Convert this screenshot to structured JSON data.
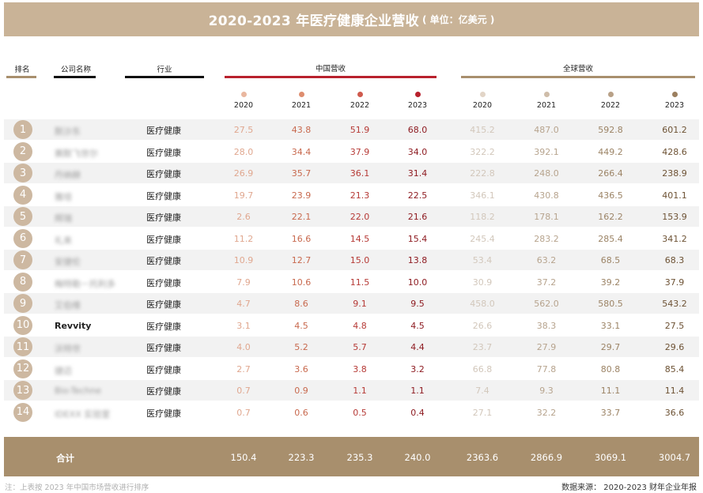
{
  "title": {
    "main": "2020-2023 年医疗健康企业营收",
    "unit": "( 单位：亿美元 )"
  },
  "headers": {
    "rank": "排名",
    "company": "公司名称",
    "industry": "行业",
    "china_revenue": "中国营收",
    "global_revenue": "全球营收"
  },
  "years": [
    "2020",
    "2021",
    "2022",
    "2023"
  ],
  "colors": {
    "title_bg": "#c9b397",
    "total_bg": "#a88f6d",
    "china_line": "#b8212d",
    "global_line": "#a88f6d",
    "china_dots": [
      "#e9b79f",
      "#de8d6f",
      "#cf5a4d",
      "#b8212d"
    ],
    "global_dots": [
      "#e2d5c7",
      "#cfbda9",
      "#b8a187",
      "#9b7f5f"
    ],
    "china_text": [
      "#e0a78f",
      "#c8694e",
      "#b63a36",
      "#8e1c22"
    ],
    "global_text": [
      "#d2c7bb",
      "#b7a48e",
      "#9c8466",
      "#6d5234"
    ]
  },
  "rows": [
    {
      "rank": "1",
      "company": "默沙东",
      "industry": "医疗健康",
      "china": [
        "27.5",
        "43.8",
        "51.9",
        "68.0"
      ],
      "global": [
        "415.2",
        "487.0",
        "592.8",
        "601.2"
      ]
    },
    {
      "rank": "2",
      "company": "赛默飞世尔",
      "industry": "医疗健康",
      "china": [
        "28.0",
        "34.4",
        "37.9",
        "34.0"
      ],
      "global": [
        "322.2",
        "392.1",
        "449.2",
        "428.6"
      ]
    },
    {
      "rank": "3",
      "company": "丹纳赫",
      "industry": "医疗健康",
      "china": [
        "26.9",
        "35.7",
        "36.1",
        "31.4"
      ],
      "global": [
        "222.8",
        "248.0",
        "266.4",
        "238.9"
      ]
    },
    {
      "rank": "4",
      "company": "雅培",
      "industry": "医疗健康",
      "china": [
        "19.7",
        "23.9",
        "21.3",
        "22.5"
      ],
      "global": [
        "346.1",
        "430.8",
        "436.5",
        "401.1"
      ]
    },
    {
      "rank": "5",
      "company": "辉瑞",
      "industry": "医疗健康",
      "china": [
        "2.6",
        "22.1",
        "22.0",
        "21.6"
      ],
      "global": [
        "118.2",
        "178.1",
        "162.2",
        "153.9"
      ]
    },
    {
      "rank": "6",
      "company": "礼来",
      "industry": "医疗健康",
      "china": [
        "11.2",
        "16.6",
        "14.5",
        "15.4"
      ],
      "global": [
        "245.4",
        "283.2",
        "285.4",
        "341.2"
      ]
    },
    {
      "rank": "7",
      "company": "安捷伦",
      "industry": "医疗健康",
      "china": [
        "10.9",
        "12.7",
        "15.0",
        "13.8"
      ],
      "global": [
        "53.4",
        "63.2",
        "68.5",
        "68.3"
      ]
    },
    {
      "rank": "8",
      "company": "梅特勒－托利多",
      "industry": "医疗健康",
      "china": [
        "7.9",
        "10.6",
        "11.5",
        "10.0"
      ],
      "global": [
        "30.9",
        "37.2",
        "39.2",
        "37.9"
      ]
    },
    {
      "rank": "9",
      "company": "艾伯维",
      "industry": "医疗健康",
      "china": [
        "4.7",
        "8.6",
        "9.1",
        "9.5"
      ],
      "global": [
        "458.0",
        "562.0",
        "580.5",
        "543.2"
      ]
    },
    {
      "rank": "10",
      "company": "Revvity",
      "industry": "医疗健康",
      "china": [
        "3.1",
        "4.5",
        "4.8",
        "4.5"
      ],
      "global": [
        "26.6",
        "38.3",
        "33.1",
        "27.5"
      ]
    },
    {
      "rank": "11",
      "company": "沃特世",
      "industry": "医疗健康",
      "china": [
        "4.0",
        "5.2",
        "5.7",
        "4.4"
      ],
      "global": [
        "23.7",
        "27.9",
        "29.7",
        "29.6"
      ]
    },
    {
      "rank": "12",
      "company": "捷迈",
      "industry": "医疗健康",
      "china": [
        "2.7",
        "3.6",
        "3.8",
        "3.2"
      ],
      "global": [
        "66.8",
        "77.8",
        "80.8",
        "85.4"
      ]
    },
    {
      "rank": "13",
      "company": "Bio-Techne",
      "industry": "医疗健康",
      "china": [
        "0.7",
        "0.9",
        "1.1",
        "1.1"
      ],
      "global": [
        "7.4",
        "9.3",
        "11.1",
        "11.4"
      ]
    },
    {
      "rank": "14",
      "company": "IDEXX 实验室",
      "industry": "医疗健康",
      "china": [
        "0.7",
        "0.6",
        "0.5",
        "0.4"
      ],
      "global": [
        "27.1",
        "32.2",
        "33.7",
        "36.6"
      ]
    }
  ],
  "total": {
    "label": "合计",
    "china": [
      "150.4",
      "223.3",
      "235.3",
      "240.0"
    ],
    "global": [
      "2363.6",
      "2866.9",
      "3069.1",
      "3004.7"
    ]
  },
  "note": "注：上表按 2023 年中国市场营收进行排序",
  "source": "数据来源： 2020-2023 财年企业年报"
}
